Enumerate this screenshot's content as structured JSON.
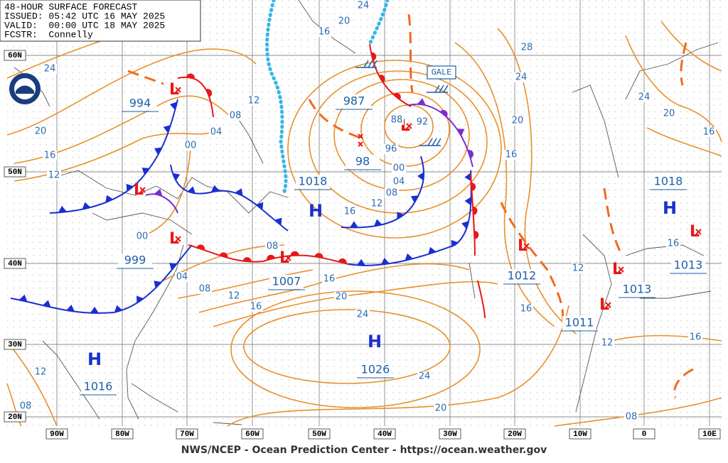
{
  "header": {
    "title": "48-HOUR SURFACE FORECAST",
    "issued": "ISSUED: 05:42 UTC 16 MAY 2025",
    "valid": "VALID:  00:00 UTC 18 MAY 2025",
    "forecaster": "FCSTR:  Connelly"
  },
  "latitude_labels": [
    "60N",
    "50N",
    "40N",
    "30N",
    "20N"
  ],
  "longitude_labels": [
    "90W",
    "80W",
    "70W",
    "60W",
    "50W",
    "40W",
    "30W",
    "20W",
    "10W",
    "0",
    "10E"
  ],
  "high_symbols": [
    "H",
    "H",
    "H",
    "H"
  ],
  "low_symbols": [
    "L",
    "L",
    "L",
    "L",
    "L",
    "L",
    "L",
    "L",
    "L"
  ],
  "pressure_labels": [
    "994",
    "999",
    "1016",
    "1007",
    "1026",
    "1018",
    "1018",
    "987",
    "98",
    "1012",
    "1011",
    "1013",
    "1013"
  ],
  "isobar_labels": [
    "24",
    "20",
    "16",
    "12",
    "12",
    "08",
    "04",
    "00",
    "00",
    "04",
    "08",
    "12",
    "16",
    "20",
    "16",
    "24",
    "24",
    "20",
    "08",
    "16",
    "12",
    "08",
    "04",
    "00",
    "96",
    "88",
    "92",
    "16",
    "20",
    "24",
    "28",
    "24",
    "20",
    "16",
    "16",
    "12",
    "12",
    "16",
    "08",
    "12",
    "08",
    "24",
    "20",
    "16",
    "16"
  ],
  "warning": "GALE",
  "footer": "NWS/NCEP - Ocean Prediction Center - https://ocean.weather.gov"
}
